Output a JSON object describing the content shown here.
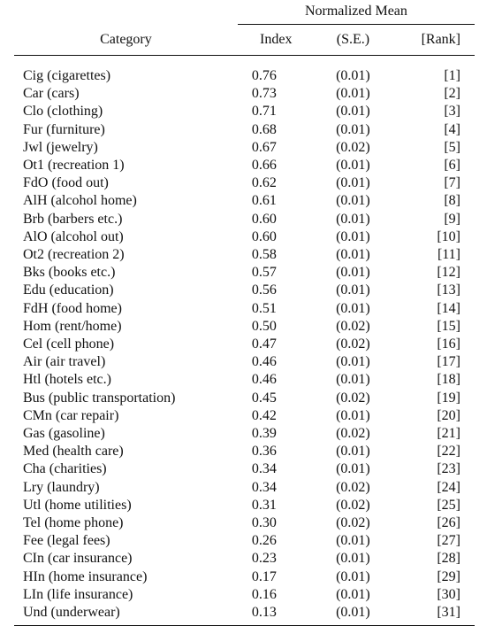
{
  "table": {
    "group_header": "Normalized Mean",
    "columns": {
      "category": "Category",
      "index": "Index",
      "se": "(S.E.)",
      "rank": "[Rank]"
    },
    "rows": [
      {
        "category": "Cig (cigarettes)",
        "index": "0.76",
        "se": "(0.01)",
        "rank": "[1]"
      },
      {
        "category": "Car (cars)",
        "index": "0.73",
        "se": "(0.01)",
        "rank": "[2]"
      },
      {
        "category": "Clo (clothing)",
        "index": "0.71",
        "se": "(0.01)",
        "rank": "[3]"
      },
      {
        "category": "Fur (furniture)",
        "index": "0.68",
        "se": "(0.01)",
        "rank": "[4]"
      },
      {
        "category": "Jwl (jewelry)",
        "index": "0.67",
        "se": "(0.02)",
        "rank": "[5]"
      },
      {
        "category": "Ot1 (recreation 1)",
        "index": "0.66",
        "se": "(0.01)",
        "rank": "[6]"
      },
      {
        "category": "FdO (food out)",
        "index": "0.62",
        "se": "(0.01)",
        "rank": "[7]"
      },
      {
        "category": "AlH (alcohol home)",
        "index": "0.61",
        "se": "(0.01)",
        "rank": "[8]"
      },
      {
        "category": "Brb (barbers etc.)",
        "index": "0.60",
        "se": "(0.01)",
        "rank": "[9]"
      },
      {
        "category": "AlO (alcohol out)",
        "index": "0.60",
        "se": "(0.01)",
        "rank": "[10]"
      },
      {
        "category": "Ot2 (recreation 2)",
        "index": "0.58",
        "se": "(0.01)",
        "rank": "[11]"
      },
      {
        "category": "Bks (books etc.)",
        "index": "0.57",
        "se": "(0.01)",
        "rank": "[12]"
      },
      {
        "category": "Edu (education)",
        "index": "0.56",
        "se": "(0.01)",
        "rank": "[13]"
      },
      {
        "category": "FdH (food home)",
        "index": "0.51",
        "se": "(0.01)",
        "rank": "[14]"
      },
      {
        "category": "Hom (rent/home)",
        "index": "0.50",
        "se": "(0.02)",
        "rank": "[15]"
      },
      {
        "category": "Cel (cell phone)",
        "index": "0.47",
        "se": "(0.02)",
        "rank": "[16]"
      },
      {
        "category": "Air (air travel)",
        "index": "0.46",
        "se": "(0.01)",
        "rank": "[17]"
      },
      {
        "category": "Htl (hotels etc.)",
        "index": "0.46",
        "se": "(0.01)",
        "rank": "[18]"
      },
      {
        "category": "Bus (public transportation)",
        "index": "0.45",
        "se": "(0.02)",
        "rank": "[19]"
      },
      {
        "category": "CMn (car repair)",
        "index": "0.42",
        "se": "(0.01)",
        "rank": "[20]"
      },
      {
        "category": "Gas (gasoline)",
        "index": "0.39",
        "se": "(0.02)",
        "rank": "[21]"
      },
      {
        "category": "Med (health care)",
        "index": "0.36",
        "se": "(0.01)",
        "rank": "[22]"
      },
      {
        "category": "Cha (charities)",
        "index": "0.34",
        "se": "(0.01)",
        "rank": "[23]"
      },
      {
        "category": "Lry (laundry)",
        "index": "0.34",
        "se": "(0.02)",
        "rank": "[24]"
      },
      {
        "category": "Utl (home utilities)",
        "index": "0.31",
        "se": "(0.02)",
        "rank": "[25]"
      },
      {
        "category": "Tel (home phone)",
        "index": "0.30",
        "se": "(0.02)",
        "rank": "[26]"
      },
      {
        "category": "Fee (legal fees)",
        "index": "0.26",
        "se": "(0.01)",
        "rank": "[27]"
      },
      {
        "category": "CIn (car insurance)",
        "index": "0.23",
        "se": "(0.01)",
        "rank": "[28]"
      },
      {
        "category": "HIn (home insurance)",
        "index": "0.17",
        "se": "(0.01)",
        "rank": "[29]"
      },
      {
        "category": "LIn (life insurance)",
        "index": "0.16",
        "se": "(0.01)",
        "rank": "[30]"
      },
      {
        "category": "Und (underwear)",
        "index": "0.13",
        "se": "(0.01)",
        "rank": "[31]"
      }
    ]
  }
}
